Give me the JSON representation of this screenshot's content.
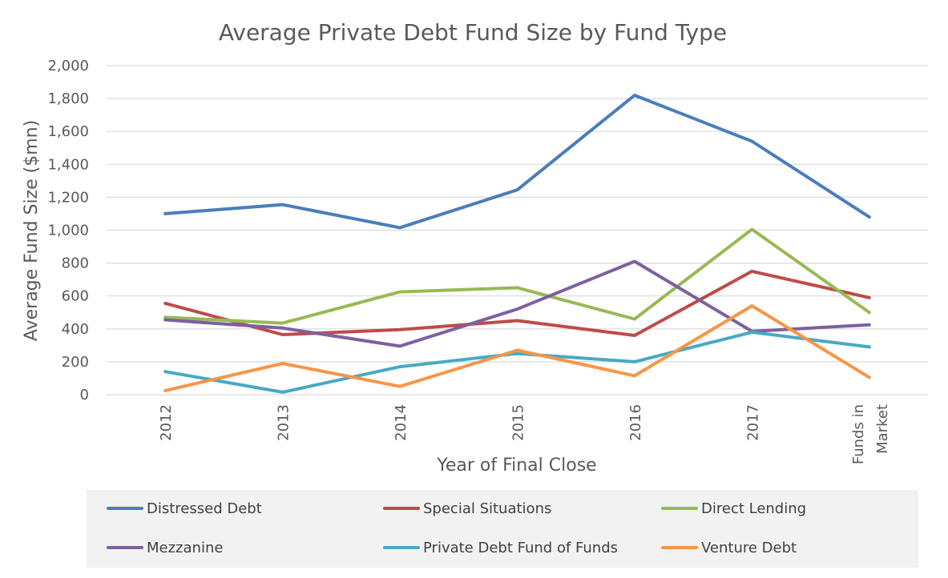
{
  "chart_data": {
    "type": "line",
    "title": "Average Private Debt Fund Size by Fund Type",
    "xlabel": "Year of Final Close",
    "ylabel": "Average Fund Size ($mn)",
    "categories": [
      "2012",
      "2013",
      "2014",
      "2015",
      "2016",
      "2017",
      "Funds in Market"
    ],
    "ylim": [
      0,
      2000
    ],
    "yticks": [
      "0",
      "200",
      "400",
      "600",
      "800",
      "1,000",
      "1,200",
      "1,400",
      "1,600",
      "1,800",
      "2,000"
    ],
    "grid": true,
    "legend_position": "bottom",
    "series": [
      {
        "name": "Distressed Debt",
        "color": "#4a7ebb",
        "values": [
          1100,
          1155,
          1015,
          1245,
          1820,
          1540,
          1080
        ]
      },
      {
        "name": "Special Situations",
        "color": "#be4b48",
        "values": [
          555,
          365,
          395,
          450,
          360,
          750,
          590
        ]
      },
      {
        "name": "Direct Lending",
        "color": "#98b954",
        "values": [
          470,
          435,
          625,
          650,
          460,
          1005,
          500
        ]
      },
      {
        "name": "Mezzanine",
        "color": "#7d60a0",
        "values": [
          455,
          405,
          295,
          520,
          810,
          385,
          425
        ]
      },
      {
        "name": "Private Debt Fund of Funds",
        "color": "#46aac5",
        "values": [
          140,
          15,
          170,
          250,
          200,
          380,
          290
        ]
      },
      {
        "name": "Venture Debt",
        "color": "#f79646",
        "values": [
          25,
          190,
          50,
          270,
          115,
          540,
          105
        ]
      }
    ]
  }
}
